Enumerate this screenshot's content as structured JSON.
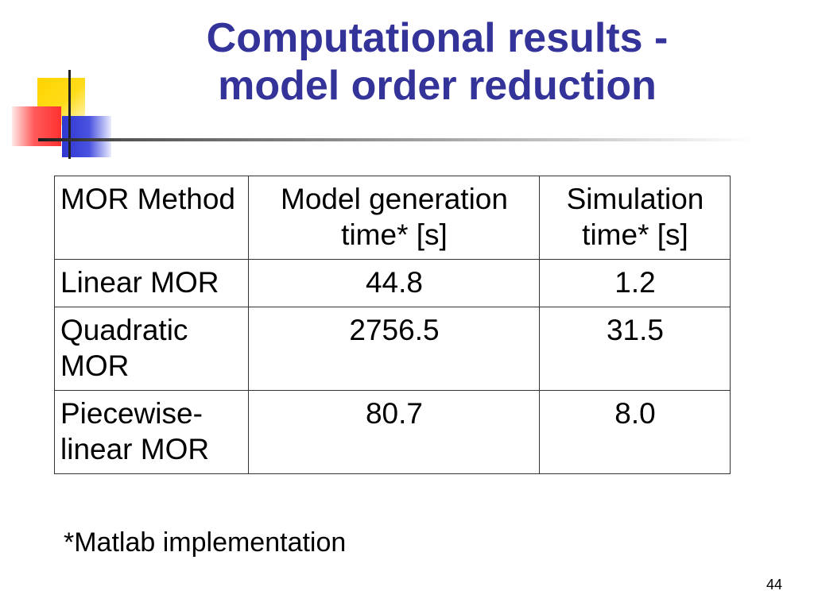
{
  "slide": {
    "title_line1": "Computational results -",
    "title_line2": "model order reduction",
    "footnote": "*Matlab implementation",
    "page_number": "44",
    "title_color": "#333399"
  },
  "table": {
    "headers": [
      "MOR Method",
      "Model generation time* [s]",
      "Simulation time* [s]"
    ],
    "rows": [
      [
        "Linear MOR",
        "44.8",
        "1.2"
      ],
      [
        "Quadratic MOR",
        "2756.5",
        "31.5"
      ],
      [
        "Piecewise-linear MOR",
        "80.7",
        "8.0"
      ]
    ]
  }
}
